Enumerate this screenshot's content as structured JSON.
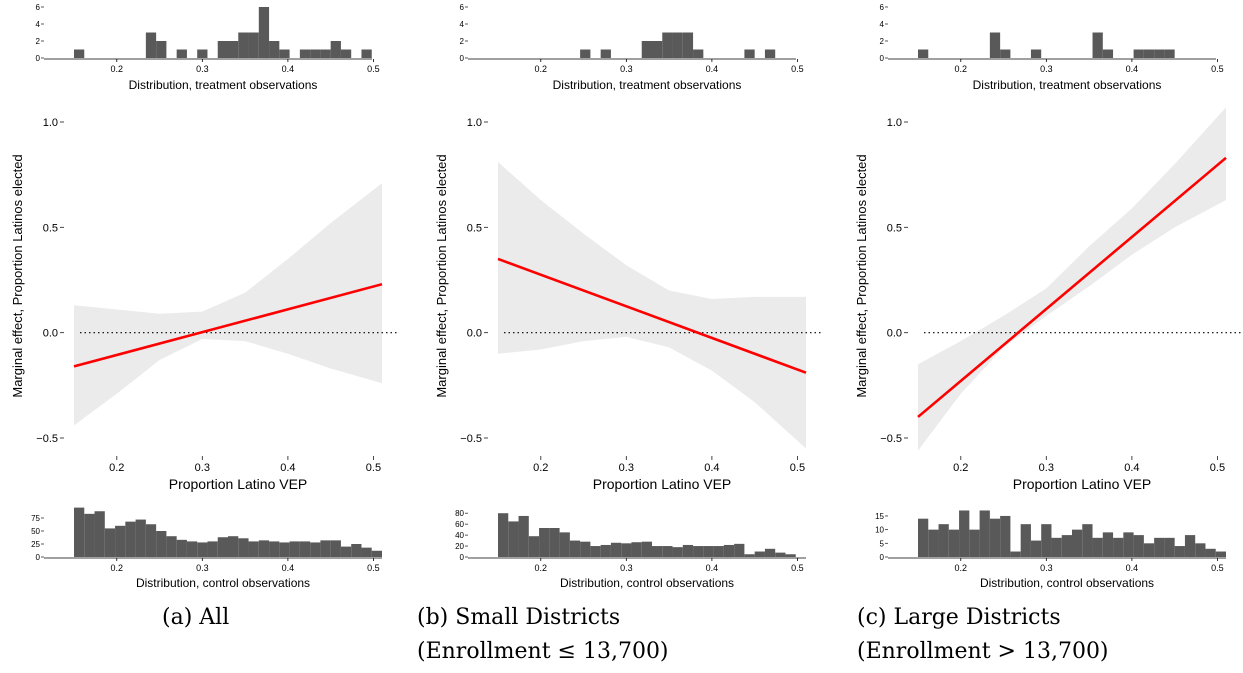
{
  "captions": [
    {
      "line1": "(a) All",
      "line2": ""
    },
    {
      "line1": "(b) Small Districts",
      "line2": "(Enrollment ≤ 13,700)"
    },
    {
      "line1": "(c) Large Districts",
      "line2": "(Enrollment > 13,700)"
    }
  ],
  "colors": {
    "line": "#ff0000",
    "ribbon": "#ebebeb",
    "bars": "#595959",
    "text": "#000000"
  },
  "chart_data": [
    {
      "type": "line",
      "panel": "a",
      "xlabel": "Proportion Latino VEP",
      "ylabel": "Marginal effect, Proportion Latinos elected",
      "xlim": [
        0.15,
        0.51
      ],
      "ylim": [
        -0.5,
        1.0
      ],
      "xticks": [
        0.2,
        0.3,
        0.4,
        0.5
      ],
      "xtick_labels": [
        "0.2",
        "0.3",
        "0.4",
        "0.5"
      ],
      "yticks": [
        -0.5,
        0.0,
        0.5,
        1.0
      ],
      "ytick_labels": [
        "−0.5",
        "0.0",
        "0.5",
        "1.0"
      ],
      "reference_line_y": 0,
      "line": {
        "x": [
          0.15,
          0.51
        ],
        "y": [
          -0.16,
          0.23
        ]
      },
      "band": {
        "x": [
          0.15,
          0.2,
          0.25,
          0.3,
          0.35,
          0.4,
          0.45,
          0.51
        ],
        "lower": [
          -0.44,
          -0.29,
          -0.13,
          -0.03,
          -0.04,
          -0.1,
          -0.17,
          -0.24
        ],
        "upper": [
          0.13,
          0.11,
          0.09,
          0.1,
          0.19,
          0.35,
          0.52,
          0.71
        ]
      },
      "hist_treatment": {
        "xlabel": "Distribution, treatment observations",
        "yticks": [
          0,
          2,
          4,
          6
        ],
        "ytick_labels": [
          "0",
          "2",
          "4",
          "6"
        ],
        "ymax": 6,
        "xtick_labels": [
          "0.2",
          "0.3",
          "0.4",
          "0.5"
        ],
        "bin_start": 0.15,
        "bin_width": 0.012,
        "counts": [
          1,
          0,
          0,
          0,
          0,
          0,
          0,
          3,
          2,
          0,
          1,
          0,
          1,
          0,
          2,
          2,
          3,
          3,
          6,
          2,
          1,
          0,
          1,
          1,
          1,
          2,
          1,
          0,
          1,
          0
        ]
      },
      "hist_control": {
        "xlabel": "Distribution, control observations",
        "yticks": [
          0,
          25,
          50,
          75
        ],
        "ytick_labels": [
          "0",
          "25",
          "50",
          "75"
        ],
        "ymax": 100,
        "xtick_labels": [
          "0.2",
          "0.3",
          "0.4",
          "0.5"
        ],
        "bin_start": 0.15,
        "bin_width": 0.012,
        "counts": [
          95,
          83,
          88,
          55,
          60,
          68,
          72,
          63,
          50,
          40,
          33,
          30,
          28,
          30,
          38,
          40,
          36,
          30,
          32,
          30,
          28,
          30,
          30,
          28,
          32,
          32,
          20,
          25,
          18,
          12
        ]
      }
    },
    {
      "type": "line",
      "panel": "b",
      "xlabel": "Proportion Latino VEP",
      "ylabel": "Marginal effect, Proportion Latinos elected",
      "xlim": [
        0.15,
        0.51
      ],
      "ylim": [
        -0.5,
        1.0
      ],
      "xticks": [
        0.2,
        0.3,
        0.4,
        0.5
      ],
      "xtick_labels": [
        "0.2",
        "0.3",
        "0.4",
        "0.5"
      ],
      "yticks": [
        -0.5,
        0.0,
        0.5,
        1.0
      ],
      "ytick_labels": [
        "−0.5",
        "0.0",
        "0.5",
        "1.0"
      ],
      "reference_line_y": 0,
      "line": {
        "x": [
          0.15,
          0.51
        ],
        "y": [
          0.35,
          -0.19
        ]
      },
      "band": {
        "x": [
          0.15,
          0.2,
          0.25,
          0.3,
          0.35,
          0.4,
          0.45,
          0.51
        ],
        "lower": [
          -0.1,
          -0.08,
          -0.04,
          -0.02,
          -0.07,
          -0.18,
          -0.33,
          -0.55
        ],
        "upper": [
          0.81,
          0.63,
          0.47,
          0.32,
          0.2,
          0.16,
          0.17,
          0.17
        ]
      },
      "hist_treatment": {
        "xlabel": "Distribution, treatment observations",
        "yticks": [
          0,
          2,
          4,
          6
        ],
        "ytick_labels": [
          "0",
          "2",
          "4",
          "6"
        ],
        "ymax": 6,
        "xtick_labels": [
          "0.2",
          "0.3",
          "0.4",
          "0.5"
        ],
        "bin_start": 0.15,
        "bin_width": 0.012,
        "counts": [
          0,
          0,
          0,
          0,
          0,
          0,
          0,
          0,
          1,
          0,
          1,
          0,
          0,
          0,
          2,
          2,
          3,
          3,
          3,
          1,
          0,
          0,
          0,
          0,
          1,
          0,
          1,
          0,
          0,
          0
        ]
      },
      "hist_control": {
        "xlabel": "Distribution, control observations",
        "yticks": [
          0,
          20,
          40,
          60,
          80
        ],
        "ytick_labels": [
          "0",
          "20",
          "40",
          "60",
          "80"
        ],
        "ymax": 95,
        "xtick_labels": [
          "0.2",
          "0.3",
          "0.4",
          "0.5"
        ],
        "bin_start": 0.15,
        "bin_width": 0.012,
        "counts": [
          80,
          65,
          75,
          38,
          53,
          53,
          45,
          30,
          28,
          20,
          22,
          26,
          25,
          27,
          28,
          20,
          20,
          18,
          22,
          20,
          20,
          20,
          22,
          24,
          5,
          10,
          15,
          8,
          5,
          0
        ]
      }
    },
    {
      "type": "line",
      "panel": "c",
      "xlabel": "Proportion Latino VEP",
      "ylabel": "Marginal effect, Proportion Latinos elected",
      "xlim": [
        0.15,
        0.51
      ],
      "ylim": [
        -0.5,
        1.0
      ],
      "xticks": [
        0.2,
        0.3,
        0.4,
        0.5
      ],
      "xtick_labels": [
        "0.2",
        "0.3",
        "0.4",
        "0.5"
      ],
      "yticks": [
        -0.5,
        0.0,
        0.5,
        1.0
      ],
      "ytick_labels": [
        "−0.5",
        "0.0",
        "0.5",
        "1.0"
      ],
      "reference_line_y": 0,
      "line": {
        "x": [
          0.15,
          0.51
        ],
        "y": [
          -0.4,
          0.83
        ]
      },
      "band": {
        "x": [
          0.15,
          0.2,
          0.25,
          0.3,
          0.35,
          0.4,
          0.45,
          0.51
        ],
        "lower": [
          -0.56,
          -0.29,
          -0.07,
          0.08,
          0.22,
          0.37,
          0.5,
          0.63
        ],
        "upper": [
          -0.15,
          -0.04,
          0.08,
          0.21,
          0.41,
          0.59,
          0.8,
          1.07
        ]
      },
      "hist_treatment": {
        "xlabel": "Distribution, treatment observations",
        "yticks": [
          0,
          2,
          4,
          6
        ],
        "ytick_labels": [
          "0",
          "2",
          "4",
          "6"
        ],
        "ymax": 6,
        "xtick_labels": [
          "0.2",
          "0.3",
          "0.4",
          "0.5"
        ],
        "bin_start": 0.15,
        "bin_width": 0.012,
        "counts": [
          1,
          0,
          0,
          0,
          0,
          0,
          0,
          3,
          1,
          0,
          0,
          1,
          0,
          0,
          0,
          0,
          0,
          3,
          1,
          0,
          0,
          1,
          1,
          1,
          1,
          0,
          0,
          0,
          0,
          0
        ]
      },
      "hist_control": {
        "xlabel": "Distribution, control observations",
        "yticks": [
          0,
          5,
          10,
          15
        ],
        "ytick_labels": [
          "0",
          "5",
          "10",
          "15"
        ],
        "ymax": 19,
        "xtick_labels": [
          "0.2",
          "0.3",
          "0.4",
          "0.5"
        ],
        "bin_start": 0.15,
        "bin_width": 0.012,
        "counts": [
          14,
          10,
          12,
          10,
          17,
          10,
          17,
          14,
          15,
          2,
          12,
          6,
          12,
          7,
          8,
          10,
          12,
          7,
          9,
          7,
          9,
          8,
          5,
          7,
          7,
          4,
          8,
          5,
          3,
          2
        ]
      }
    }
  ]
}
